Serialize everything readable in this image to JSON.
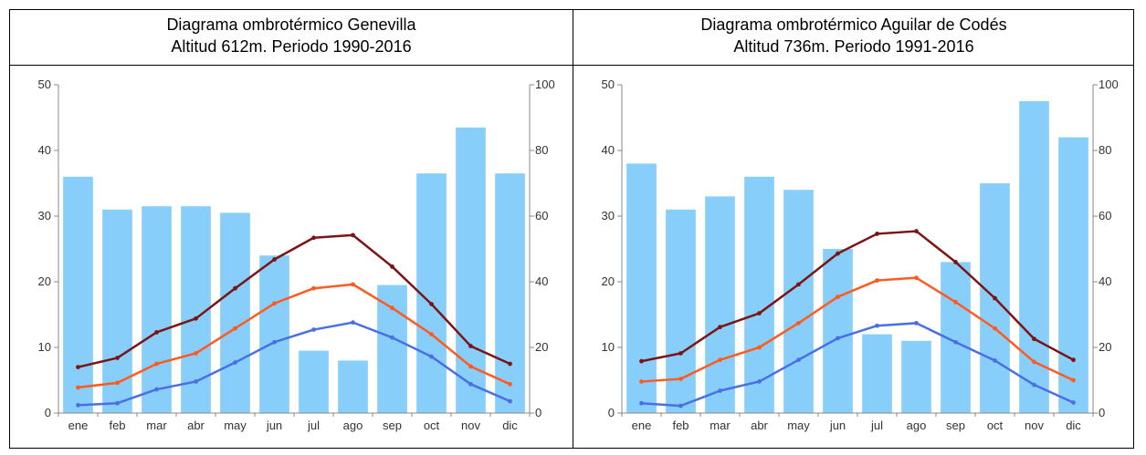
{
  "colors": {
    "bar": "#87cefa",
    "tmax": "#7b1515",
    "tmean": "#ff5a1f",
    "tmin": "#4a6fe3",
    "axis": "#888888"
  },
  "chart_data": [
    {
      "type": "bar",
      "title": "Diagrama ombrotérmico Genevilla",
      "subtitle": "Altitud 612m. Periodo 1990-2016",
      "categories": [
        "ene",
        "feb",
        "mar",
        "abr",
        "may",
        "jun",
        "jul",
        "ago",
        "sep",
        "oct",
        "nov",
        "dic"
      ],
      "ylim": [
        0,
        50
      ],
      "yticks": [
        0,
        10,
        20,
        30,
        40,
        50
      ],
      "y2lim": [
        0,
        100
      ],
      "y2ticks": [
        0,
        20,
        40,
        60,
        80,
        100
      ],
      "bars_axis": "right",
      "series": [
        {
          "type": "bar",
          "axis": "right",
          "values": [
            72,
            62,
            63,
            63,
            61,
            48,
            19,
            16,
            39,
            73,
            87,
            73
          ]
        },
        {
          "type": "line",
          "axis": "left",
          "color_key": "tmax",
          "values": [
            7.0,
            8.4,
            12.3,
            14.4,
            19.0,
            23.4,
            26.7,
            27.1,
            22.3,
            16.6,
            10.2,
            7.5
          ]
        },
        {
          "type": "line",
          "axis": "left",
          "color_key": "tmean",
          "values": [
            3.9,
            4.6,
            7.5,
            9.1,
            12.9,
            16.7,
            19.0,
            19.6,
            16.0,
            12.0,
            7.1,
            4.4
          ]
        },
        {
          "type": "line",
          "axis": "left",
          "color_key": "tmin",
          "values": [
            1.2,
            1.5,
            3.6,
            4.8,
            7.7,
            10.8,
            12.7,
            13.8,
            11.5,
            8.6,
            4.4,
            1.8
          ]
        }
      ]
    },
    {
      "type": "bar",
      "title": "Diagrama ombrotérmico Aguilar de Codés",
      "subtitle": "Altitud 736m. Periodo 1991-2016",
      "categories": [
        "ene",
        "feb",
        "mar",
        "abr",
        "may",
        "jun",
        "jul",
        "ago",
        "sep",
        "oct",
        "nov",
        "dic"
      ],
      "ylim": [
        0,
        50
      ],
      "yticks": [
        0,
        10,
        20,
        30,
        40,
        50
      ],
      "y2lim": [
        0,
        100
      ],
      "y2ticks": [
        0,
        20,
        40,
        60,
        80,
        100
      ],
      "bars_axis": "right",
      "series": [
        {
          "type": "bar",
          "axis": "right",
          "values": [
            76,
            62,
            66,
            72,
            68,
            50,
            24,
            22,
            46,
            70,
            95,
            84
          ]
        },
        {
          "type": "line",
          "axis": "left",
          "color_key": "tmax",
          "values": [
            7.9,
            9.1,
            13.1,
            15.2,
            19.6,
            24.3,
            27.3,
            27.7,
            23.0,
            17.5,
            11.3,
            8.1
          ]
        },
        {
          "type": "line",
          "axis": "left",
          "color_key": "tmean",
          "values": [
            4.8,
            5.2,
            8.1,
            10.0,
            13.7,
            17.7,
            20.2,
            20.6,
            16.9,
            12.9,
            7.8,
            5.0
          ]
        },
        {
          "type": "line",
          "axis": "left",
          "color_key": "tmin",
          "values": [
            1.5,
            1.1,
            3.4,
            4.8,
            8.1,
            11.4,
            13.3,
            13.7,
            10.8,
            8.0,
            4.3,
            1.6
          ]
        }
      ]
    }
  ]
}
